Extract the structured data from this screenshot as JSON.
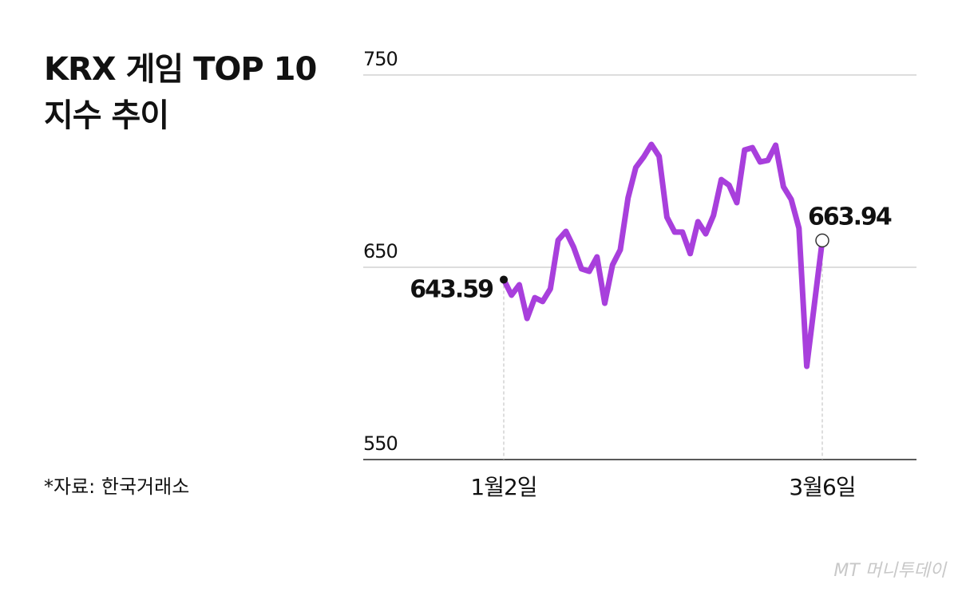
{
  "chart_data": {
    "type": "line",
    "title": [
      "KRX 게임 TOP 10",
      "지수 추이"
    ],
    "source": "*자료: 한국거래소",
    "watermark": "MT 머니투데이",
    "categories": [
      "1월2일",
      null,
      null,
      null,
      null,
      null,
      null,
      null,
      null,
      null,
      null,
      null,
      null,
      null,
      null,
      null,
      null,
      null,
      null,
      null,
      null,
      null,
      null,
      null,
      null,
      null,
      null,
      null,
      null,
      null,
      null,
      null,
      null,
      null,
      null,
      null,
      null,
      null,
      null,
      null,
      null,
      "3월6일"
    ],
    "series": [
      {
        "name": "KRX 게임 TOP 10",
        "color": "#a83fdc",
        "values": [
          643.59,
          635.5,
          640.9,
          623.4,
          634.2,
          632.2,
          638.8,
          664.1,
          668.7,
          660.4,
          649.2,
          647.9,
          655.4,
          631.3,
          651.2,
          659.1,
          686.1,
          701.9,
          707.3,
          713.9,
          707.7,
          676.1,
          668.3,
          668.3,
          657.1,
          673.7,
          667.4,
          677.0,
          695.6,
          692.7,
          683.6,
          711.0,
          712.2,
          704.8,
          705.6,
          713.5,
          691.9,
          685.3,
          670.3,
          598.5,
          631.3,
          663.94
        ]
      }
    ],
    "ylim": [
      550,
      750
    ],
    "yticks": [
      550,
      650,
      750
    ],
    "grid": true
  }
}
